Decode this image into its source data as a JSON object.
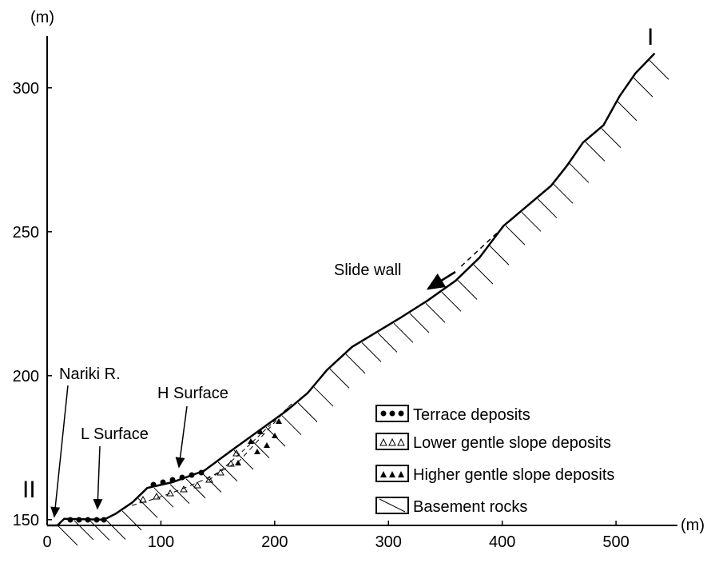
{
  "chart_data": {
    "type": "line",
    "x_label": "(m)",
    "y_label": "(m)",
    "xlim": [
      0,
      554
    ],
    "ylim": [
      148,
      318
    ],
    "xticks": [
      0,
      100,
      200,
      300,
      400,
      500
    ],
    "yticks": [
      150,
      200,
      250,
      300
    ],
    "series": [
      {
        "color": "#000000",
        "x": [
          0,
          9,
          15,
          50,
          60,
          75,
          88,
          110,
          138,
          162,
          190,
          211,
          229,
          246,
          268,
          289,
          310,
          334,
          359,
          380,
          401,
          422,
          443,
          457,
          471,
          489,
          503,
          517,
          534
        ],
        "values": [
          148,
          148,
          150.3,
          150,
          152,
          156,
          161,
          163,
          167,
          174,
          182,
          188,
          194,
          202,
          210,
          215,
          220,
          226,
          233,
          241,
          252,
          259,
          266,
          273,
          281,
          287,
          297,
          305,
          312
        ]
      }
    ],
    "annotations": {
      "end_right": "I",
      "end_left": "II",
      "slide_wall": "Slide wall",
      "river": "Nariki R.",
      "l_surface": "L Surface",
      "h_surface": "H Surface"
    },
    "legend": [
      "Terrace deposits",
      "Lower gentle slope deposits",
      "Higher gentle slope deposits",
      "Basement rocks"
    ]
  }
}
